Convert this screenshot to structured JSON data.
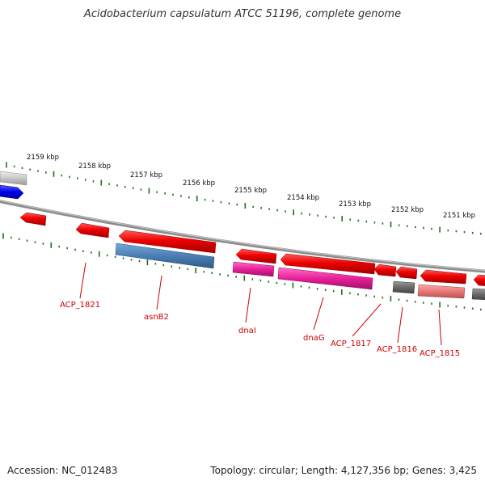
{
  "title": "Acidobacterium capsulatum ATCC 51196, complete genome",
  "footer": {
    "accession": "Accession: NC_012483",
    "summary": "Topology: circular; Length: 4,127,356 bp; Genes: 3,425"
  },
  "scale_labels": [
    "2159 kbp",
    "2158 kbp",
    "2157 kbp",
    "2156 kbp",
    "2155 kbp",
    "2154 kbp",
    "2153 kbp",
    "2152 kbp",
    "2151 kbp"
  ],
  "gene_labels": [
    "ACP_1821",
    "asnB2",
    "dnaI",
    "dnaG",
    "ACP_1817",
    "ACP_1816",
    "ACP_1815"
  ],
  "colors": {
    "backbone": "#8c8c8c",
    "tick": "#1e6e1e",
    "cds_red": "#ee0000",
    "cds_blue": "#4a7fb5",
    "cds_magenta": "#e8209a",
    "cds_gray": "#6a6a6a",
    "cds_pink": "#e87878",
    "label_red": "#cc0000"
  }
}
